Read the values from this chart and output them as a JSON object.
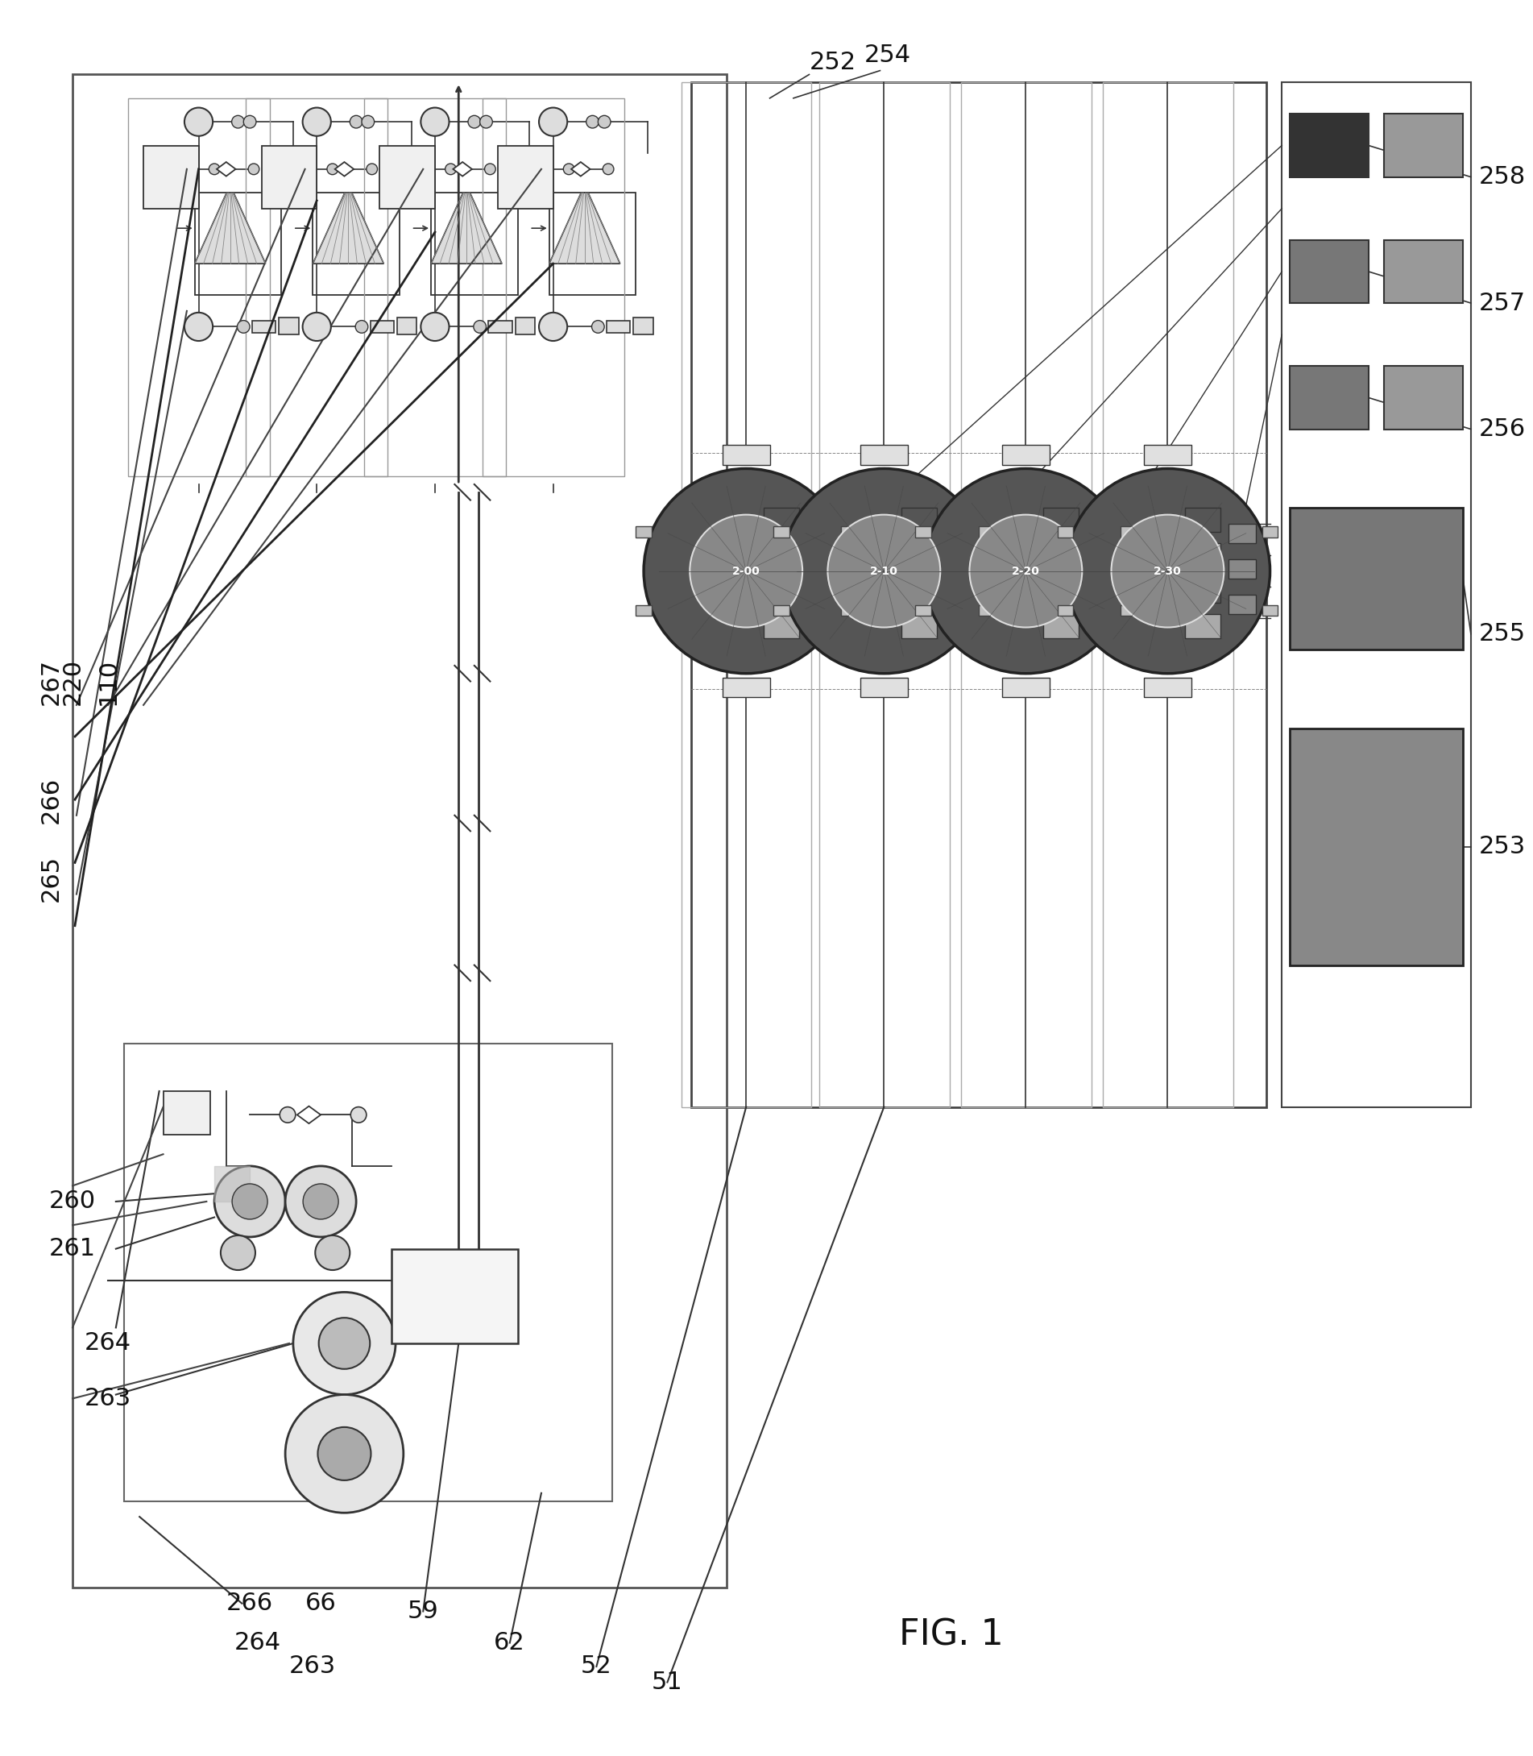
{
  "title": "FIG. 1",
  "bg_color": "#ffffff",
  "fig_width": 19.03,
  "fig_height": 21.79,
  "line_color": "#333333",
  "dark_fill": "#2a2a2a",
  "med_fill": "#777777",
  "light_fill": "#cccccc",
  "very_light": "#eeeeee",
  "unit_labels": [
    "220",
    "110",
    "267",
    "266",
    "265",
    "260",
    "261",
    "264",
    "263",
    "59",
    "62",
    "52",
    "51"
  ],
  "right_labels": [
    "258",
    "257",
    "256",
    "255",
    "253"
  ],
  "top_labels": [
    "252",
    "254"
  ]
}
